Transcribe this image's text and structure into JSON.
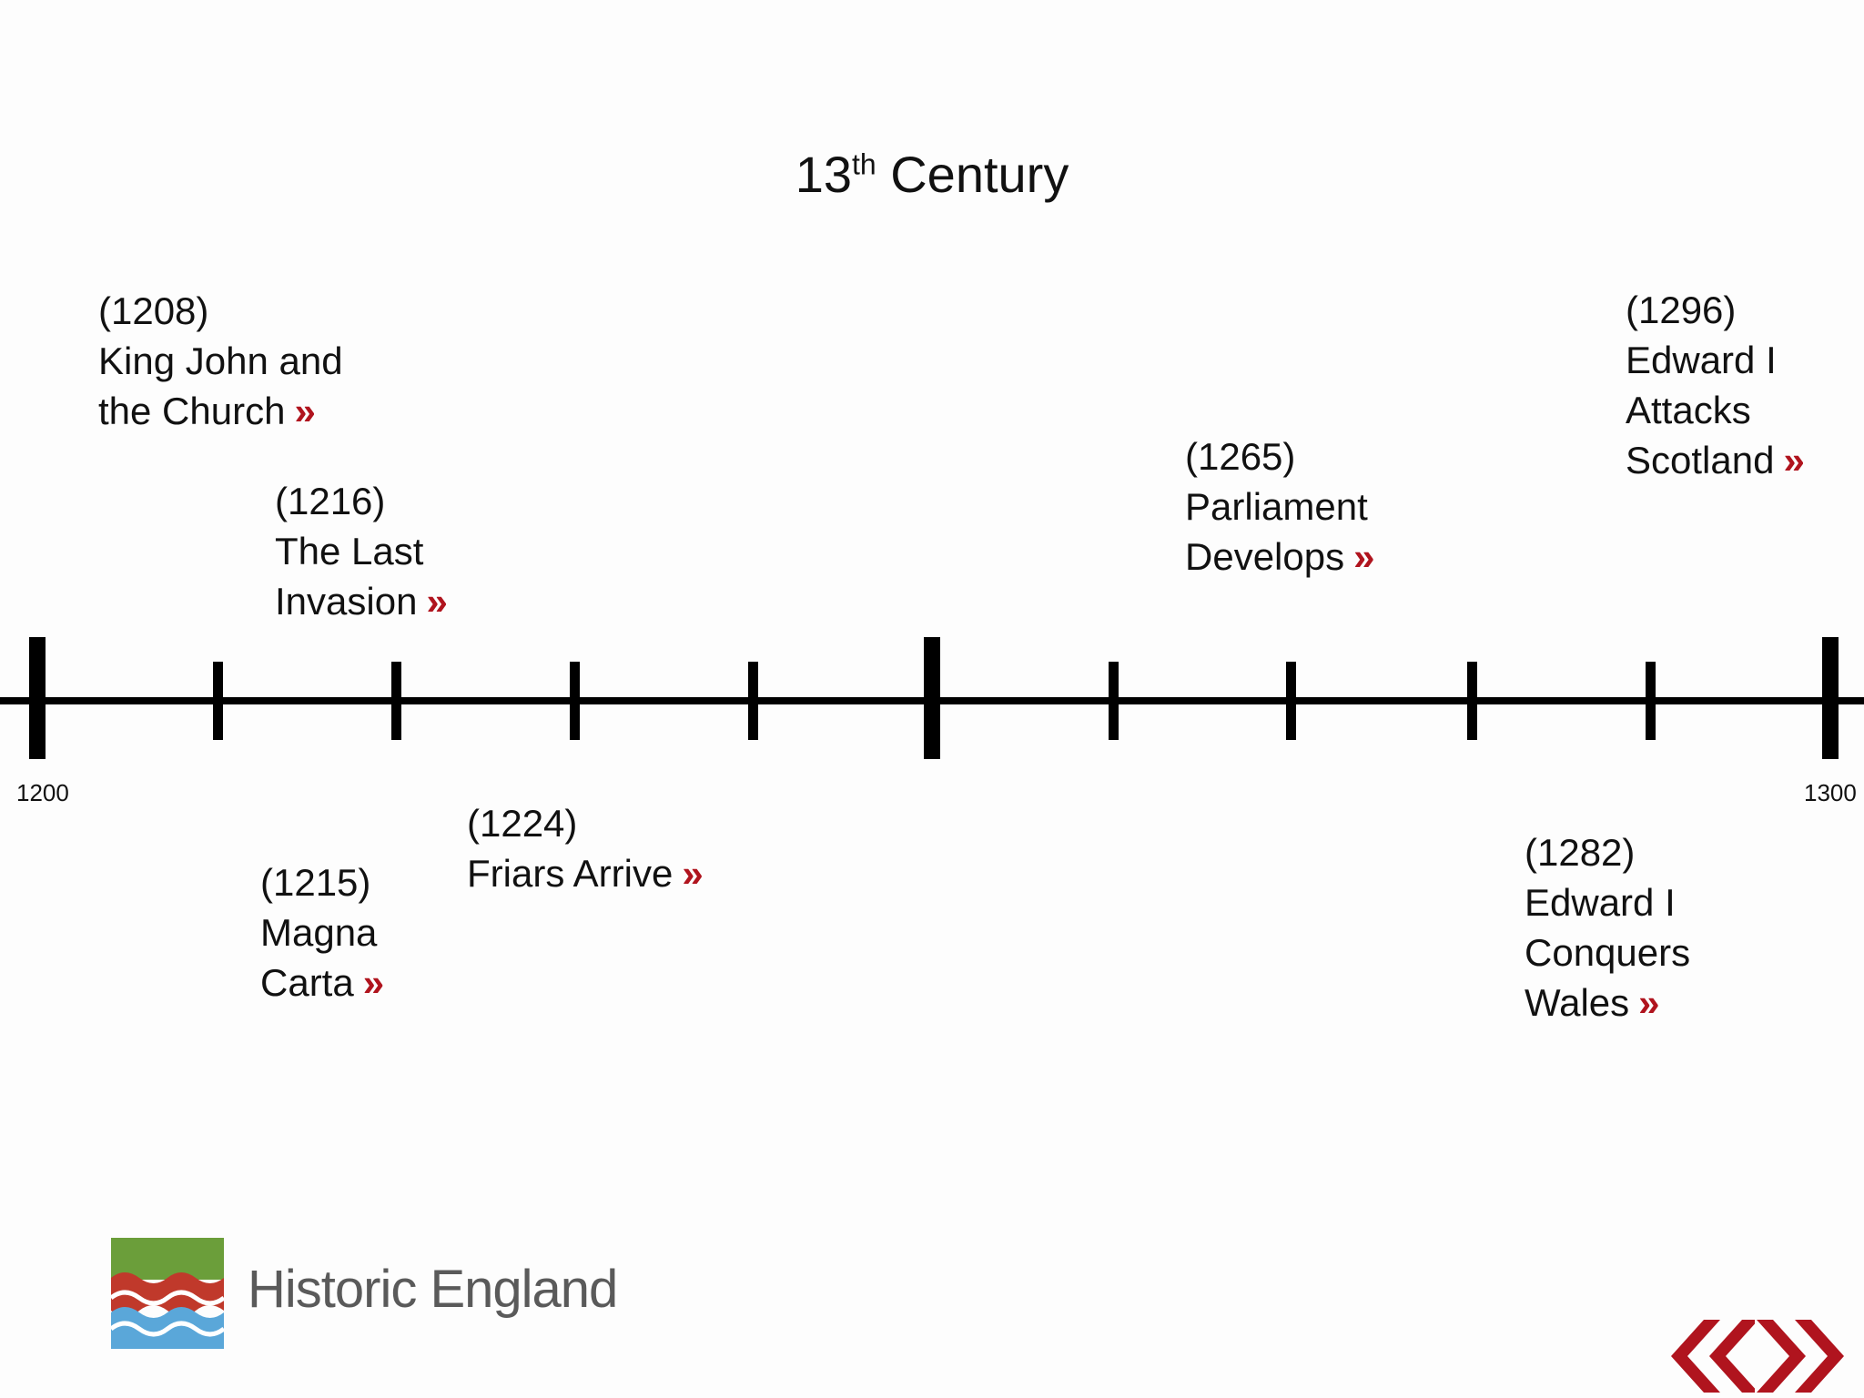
{
  "title": {
    "main": "13",
    "sup": "th",
    "rest": " Century"
  },
  "axis": {
    "start_label": "1200",
    "end_label": "1300"
  },
  "colors": {
    "accent": "#b0141e",
    "logo_green": "#6b9e3a",
    "logo_red": "#c0392b",
    "logo_blue": "#5aa7d9"
  },
  "events": {
    "e1208": {
      "year": "(1208)",
      "line1": "King John and",
      "line2": "the Church",
      "more": "»"
    },
    "e1216": {
      "year": "(1216)",
      "line1": "The Last",
      "line2": "Invasion",
      "more": "»"
    },
    "e1265": {
      "year": "(1265)",
      "line1": "Parliament",
      "line2": "Develops",
      "more": "»"
    },
    "e1296": {
      "year": "(1296)",
      "line1": "Edward I",
      "line2": "Attacks",
      "line3": "Scotland",
      "more": "»"
    },
    "e1215": {
      "year": "(1215)",
      "line1": "Magna",
      "line2": "Carta",
      "more": "»"
    },
    "e1224": {
      "year": "(1224)",
      "line1": "Friars Arrive",
      "more": "»"
    },
    "e1282": {
      "year": "(1282)",
      "line1": "Edward I",
      "line2": "Conquers",
      "line3": "Wales",
      "more": "»"
    }
  },
  "logo": {
    "brand": "Historic England",
    "icon": "historic-england-logo-icon"
  },
  "nav": {
    "prev_icon": "double-chevron-left-icon",
    "next_icon": "double-chevron-right-icon"
  }
}
